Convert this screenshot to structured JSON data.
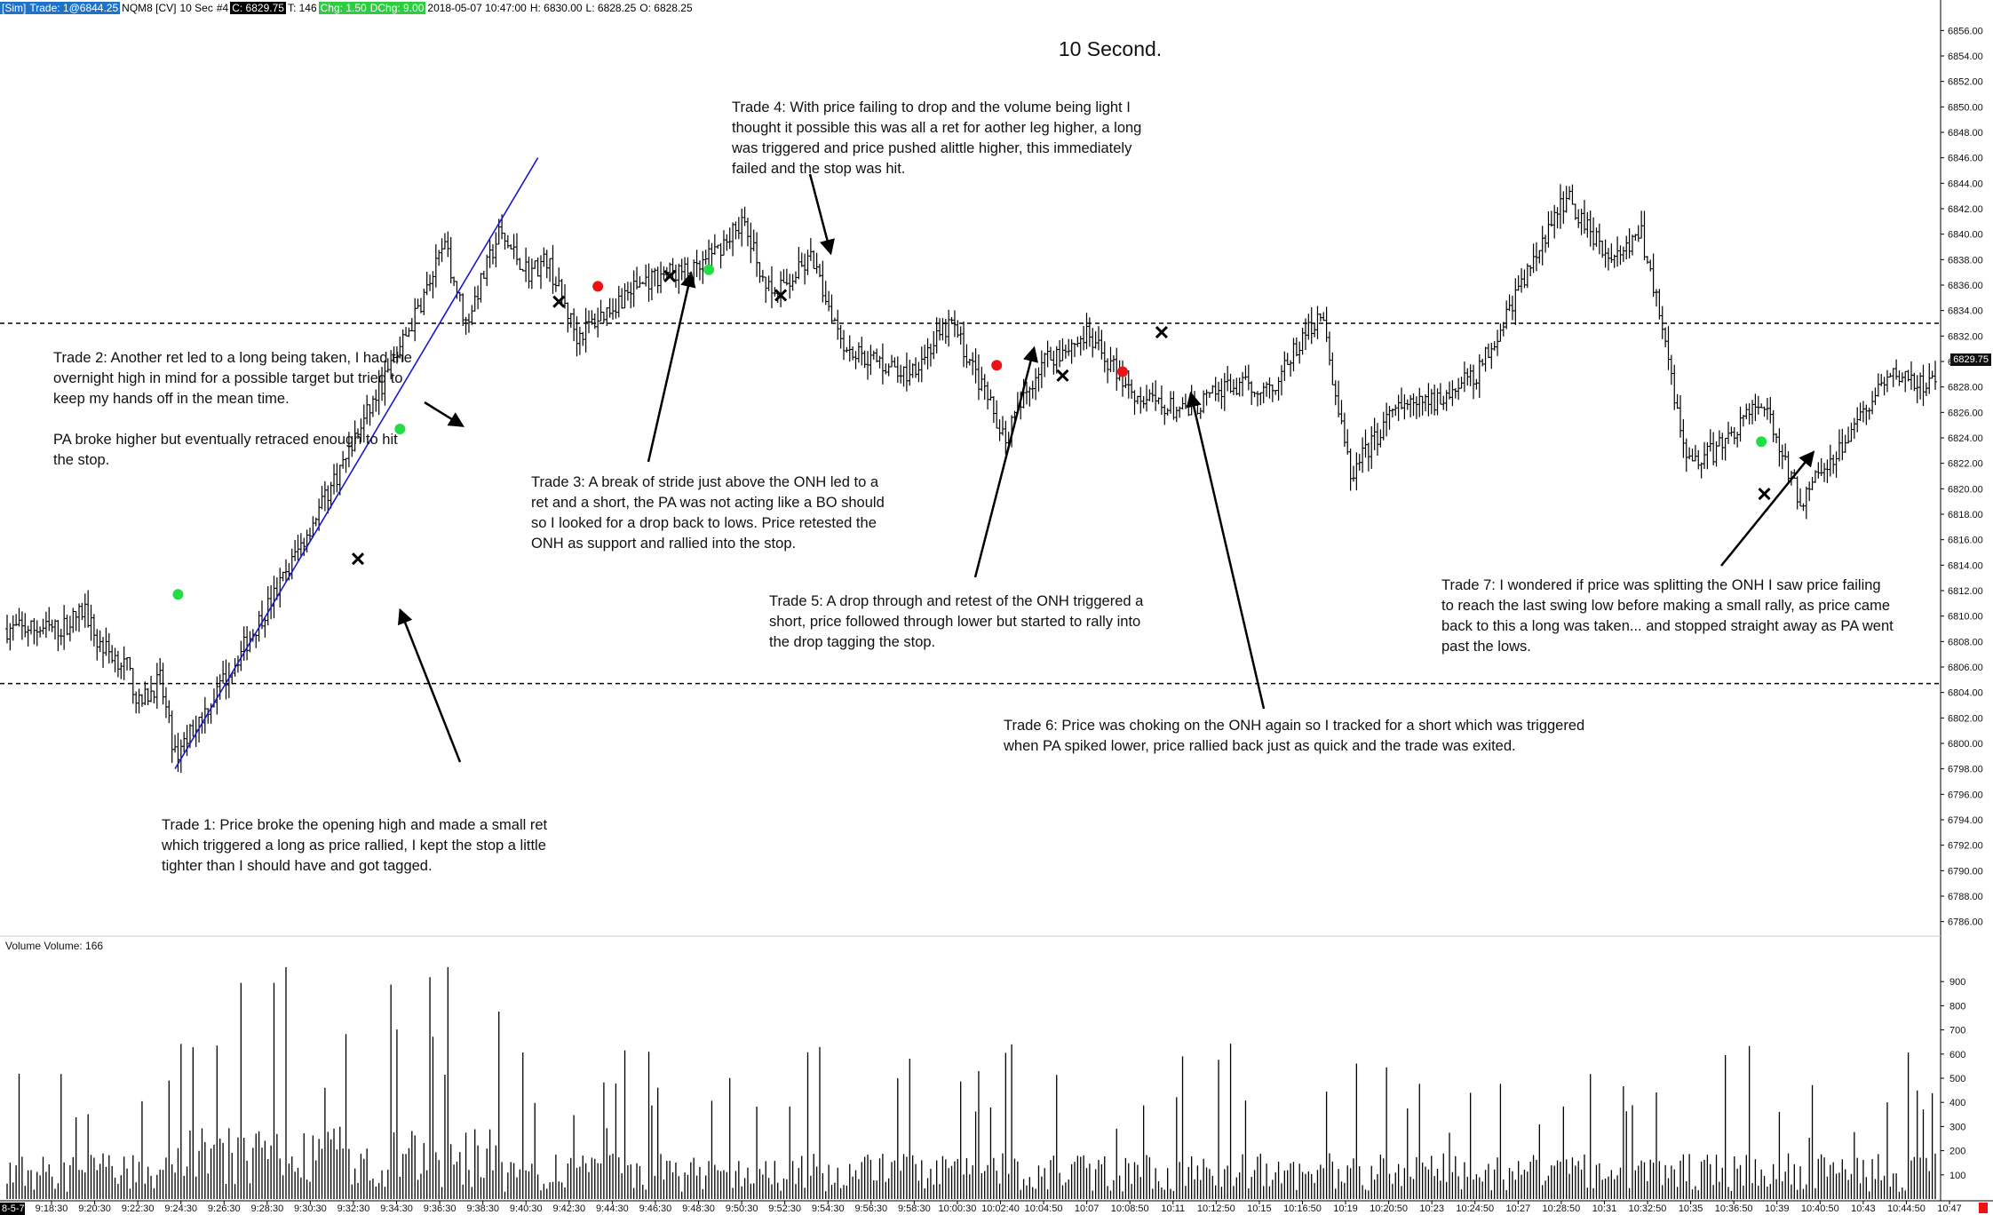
{
  "header": {
    "sim": "[Sim]",
    "trade": "Trade: 1@6844.25",
    "instrument": "NQM8 [CV]",
    "timeframe": "10 Sec",
    "id": "#4",
    "close": "C: 6829.75",
    "ticks": "T: 146",
    "chg": "Chg: 1.50",
    "dchg": "DChg: 9.00",
    "datetime": "2018-05-07 10:47:00",
    "high": "H: 6830.00",
    "low": "L: 6828.25",
    "open": "O: 6828.25"
  },
  "title": "10 Second.",
  "last_price": "6829.75",
  "volume_label": "Volume  Volume: 166",
  "bottom_left_marker": "8-5-7",
  "notes": {
    "trade1": "Trade 1:  Price broke the opening high and made a small ret\nwhich triggered a long as price rallied, I kept the stop a little\ntighter than I should have and got tagged.",
    "trade2": "Trade 2:  Another ret led to a long being taken, I had the\novernight high in mind for a possible target but tried to\nkeep my hands off in the mean time.\n\nPA broke higher but eventually retraced enough to hit\nthe stop.",
    "trade3": "Trade 3:  A break of stride just above the ONH led to a\nret and a short, the PA was not acting like a BO should\nso I looked for a drop back to lows.  Price retested the\nONH as support and rallied into the stop.",
    "trade4": "Trade 4:  With price failing to drop and the volume being light I\nthought it possible this was all a ret for aother leg higher, a long\nwas triggered and price pushed alittle higher, this immediately\nfailed and the stop was hit.",
    "trade5": "Trade 5:  A drop through and retest of the ONH triggered a\nshort, price followed through lower but started to rally into\nthe drop tagging the stop.",
    "trade6": "Trade 6:  Price was choking on the ONH again so I tracked for a short which was triggered\nwhen PA spiked lower, price rallied back just as quick and the trade was exited.",
    "trade7": "Trade 7:  I wondered if price was splitting the ONH I saw price failing\nto reach the last swing low before making a small rally, as price came\nback to this a long was taken... and stopped straight away as PA went\npast the lows."
  },
  "colors": {
    "long": "#22dd44",
    "short": "#ee1111",
    "trendline": "#1a1acc",
    "bars": "#000000"
  },
  "chart_data": {
    "type": "ohlc",
    "title": "10 Second.",
    "y_axis": {
      "range": [
        6785,
        6857
      ],
      "ticks": [
        "6856.00",
        "6854.00",
        "6852.00",
        "6850.00",
        "6848.00",
        "6846.00",
        "6844.00",
        "6842.00",
        "6840.00",
        "6838.00",
        "6836.00",
        "6834.00",
        "6832.00",
        "6830.00",
        "6828.00",
        "6826.00",
        "6824.00",
        "6822.00",
        "6820.00",
        "6818.00",
        "6816.00",
        "6814.00",
        "6812.00",
        "6810.00",
        "6808.00",
        "6806.00",
        "6804.00",
        "6802.00",
        "6800.00",
        "6798.00",
        "6796.00",
        "6794.00",
        "6792.00",
        "6790.00",
        "6788.00",
        "6786.00"
      ]
    },
    "volume_axis": {
      "range": [
        0,
        1000
      ],
      "ticks": [
        "900",
        "800",
        "700",
        "600",
        "500",
        "400",
        "300",
        "200",
        "100"
      ]
    },
    "x_ticks": [
      "9:18:30",
      "9:20:30",
      "9:22:30",
      "9:24:30",
      "9:26:30",
      "9:28:30",
      "9:30:30",
      "9:32:30",
      "9:34:30",
      "9:36:30",
      "9:38:30",
      "9:40:30",
      "9:42:30",
      "9:44:30",
      "9:46:30",
      "9:48:30",
      "9:50:30",
      "9:52:30",
      "9:54:30",
      "9:56:30",
      "9:58:30",
      "10:00:30",
      "10:02:40",
      "10:04:50",
      "10:07",
      "10:08:50",
      "10:11",
      "10:12:50",
      "10:15",
      "10:16:50",
      "10:19",
      "10:20:50",
      "10:23",
      "10:24:50",
      "10:27",
      "10:28:50",
      "10:31",
      "10:32:50",
      "10:35",
      "10:36:50",
      "10:39",
      "10:40:50",
      "10:43",
      "10:44:50",
      "10:47"
    ],
    "horizontal_levels": [
      6833.0,
      6804.7
    ],
    "price_path": [
      [
        0,
        6809
      ],
      [
        18,
        6809
      ],
      [
        26,
        6810.5
      ],
      [
        30,
        6808
      ],
      [
        40,
        6806
      ],
      [
        44,
        6803
      ],
      [
        51,
        6805
      ],
      [
        56,
        6799
      ],
      [
        70,
        6804
      ],
      [
        90,
        6812
      ],
      [
        112,
        6822
      ],
      [
        135,
        6833
      ],
      [
        146,
        6839
      ],
      [
        153,
        6833
      ],
      [
        164,
        6840
      ],
      [
        174,
        6837
      ],
      [
        180,
        6838
      ],
      [
        190,
        6832
      ],
      [
        210,
        6836
      ],
      [
        220,
        6837
      ],
      [
        230,
        6837
      ],
      [
        245,
        6841
      ],
      [
        255,
        6835
      ],
      [
        268,
        6838
      ],
      [
        280,
        6831
      ],
      [
        300,
        6829
      ],
      [
        315,
        6833
      ],
      [
        333,
        6824
      ],
      [
        345,
        6830
      ],
      [
        360,
        6832
      ],
      [
        378,
        6827
      ],
      [
        393,
        6826
      ],
      [
        407,
        6828
      ],
      [
        422,
        6828
      ],
      [
        438,
        6834
      ],
      [
        448,
        6821
      ],
      [
        462,
        6826
      ],
      [
        477,
        6827
      ],
      [
        490,
        6829
      ],
      [
        507,
        6837
      ],
      [
        520,
        6843
      ],
      [
        535,
        6838
      ],
      [
        545,
        6840
      ],
      [
        552,
        6833
      ],
      [
        560,
        6822
      ],
      [
        570,
        6823
      ],
      [
        585,
        6827
      ],
      [
        598,
        6819
      ],
      [
        610,
        6823
      ],
      [
        622,
        6827
      ],
      [
        630,
        6829
      ],
      [
        643,
        6828
      ]
    ],
    "bar_count": 644,
    "series": [
      {
        "name": "long entries",
        "points": [
          [
            57,
            6811.7
          ],
          [
            131,
            6824.7
          ],
          [
            234,
            6837.2
          ],
          [
            585,
            6823.7
          ]
        ]
      },
      {
        "name": "short entries",
        "points": [
          [
            197,
            6835.9
          ],
          [
            330,
            6829.7
          ],
          [
            372,
            6829.2
          ]
        ]
      },
      {
        "name": "exits",
        "points": [
          [
            117,
            6814.5
          ],
          [
            184,
            6834.7
          ],
          [
            221,
            6836.7
          ],
          [
            258,
            6835.2
          ],
          [
            352,
            6828.9
          ],
          [
            385,
            6832.3
          ],
          [
            586,
            6819.6
          ]
        ]
      }
    ],
    "trendline": [
      [
        6798,
        "start"
      ],
      [
        6846,
        "end"
      ]
    ]
  }
}
